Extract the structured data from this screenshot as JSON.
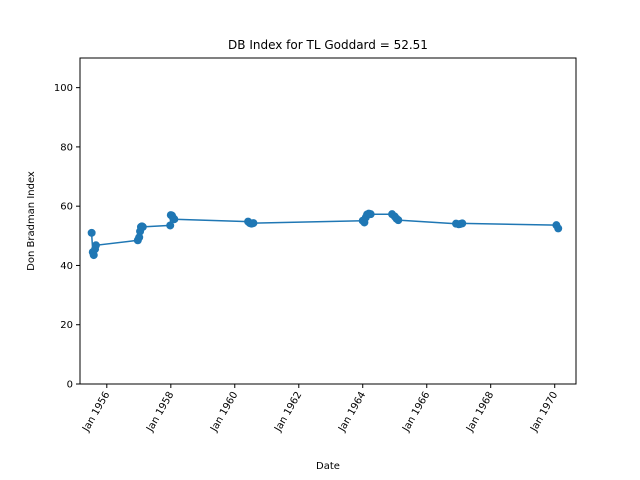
{
  "chart_data": {
    "type": "line",
    "title": "DB Index for TL Goddard = 52.51",
    "xlabel": "Date",
    "ylabel": "Don Bradman Index",
    "ylim": [
      0,
      110
    ],
    "xlim": [
      "1955-03-01",
      "1970-09-01"
    ],
    "yticks": [
      0,
      20,
      40,
      60,
      80,
      100
    ],
    "xticks": [
      {
        "date": "1956-01-01",
        "label": "Jan 1956"
      },
      {
        "date": "1958-01-01",
        "label": "Jan 1958"
      },
      {
        "date": "1960-01-01",
        "label": "Jan 1960"
      },
      {
        "date": "1962-01-01",
        "label": "Jan 1962"
      },
      {
        "date": "1964-01-01",
        "label": "Jan 1964"
      },
      {
        "date": "1966-01-01",
        "label": "Jan 1966"
      },
      {
        "date": "1968-01-01",
        "label": "Jan 1968"
      },
      {
        "date": "1970-01-01",
        "label": "Jan 1970"
      }
    ],
    "grid": false,
    "color": "#1f77b4",
    "series": [
      {
        "x": [
          "1955-07-12",
          "1955-07-25",
          "1955-08-05",
          "1955-08-20",
          "1955-08-30",
          "1956-12-20",
          "1957-01-05",
          "1957-01-15",
          "1957-01-25",
          "1957-02-05",
          "1957-02-15",
          "1957-12-25",
          "1958-01-01",
          "1958-01-15",
          "1958-01-28",
          "1958-02-10",
          "1960-06-01",
          "1960-06-20",
          "1960-07-10",
          "1960-08-01",
          "1964-01-01",
          "1964-01-20",
          "1964-02-05",
          "1964-02-20",
          "1964-03-10",
          "1964-04-01",
          "1964-12-01",
          "1965-01-01",
          "1965-01-20",
          "1965-02-10",
          "1966-12-01",
          "1967-01-01",
          "1967-01-20",
          "1967-02-10",
          "1970-01-20",
          "1970-02-10"
        ],
        "y": [
          51.0,
          44.5,
          43.5,
          45.5,
          46.8,
          48.5,
          49.5,
          51.5,
          53.0,
          53.2,
          53.0,
          53.5,
          57.0,
          56.8,
          56.0,
          55.6,
          54.8,
          54.3,
          54.1,
          54.3,
          55.1,
          54.5,
          56.2,
          57.2,
          57.5,
          57.3,
          57.3,
          56.5,
          55.8,
          55.3,
          54.1,
          53.9,
          54.0,
          54.2,
          53.6,
          52.5
        ]
      }
    ]
  }
}
